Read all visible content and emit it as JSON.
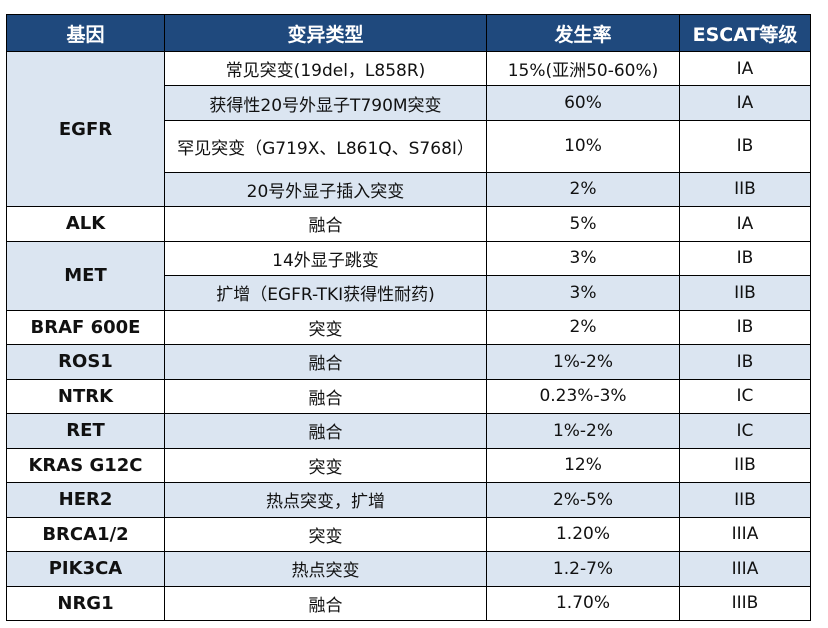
{
  "headers": [
    "基因",
    "变异类型",
    "发生率",
    "ESCAT等级"
  ],
  "rows": [
    {
      "gene": "EGFR",
      "variants": [
        {
          "type": "常见突变(19del，L858R)",
          "rate": "15%(亚洲50-60%)",
          "level": "IA"
        },
        {
          "type": "获得性20号外显子T790M突变",
          "rate": "60%",
          "level": "IA"
        },
        {
          "type": "罕见突变（G719X、L861Q、S768I）",
          "rate": "10%",
          "level": "IB"
        },
        {
          "type": "20号外显子插入突变",
          "rate": "2%",
          "level": "IIB"
        }
      ]
    },
    {
      "gene": "ALK",
      "variants": [
        {
          "type": "融合",
          "rate": "5%",
          "level": "IA"
        }
      ]
    },
    {
      "gene": "MET",
      "variants": [
        {
          "type": "14外显子跳变",
          "rate": "3%",
          "level": "IB"
        },
        {
          "type": "扩增（EGFR-TKI获得性耐药)",
          "rate": "3%",
          "level": "IIB"
        }
      ]
    },
    {
      "gene": "BRAF 600E",
      "variants": [
        {
          "type": "突变",
          "rate": "2%",
          "level": "IB"
        }
      ]
    },
    {
      "gene": "ROS1",
      "variants": [
        {
          "type": "融合",
          "rate": "1%-2%",
          "level": "IB"
        }
      ]
    },
    {
      "gene": "NTRK",
      "variants": [
        {
          "type": "融合",
          "rate": "0.23%-3%",
          "level": "IC"
        }
      ]
    },
    {
      "gene": "RET",
      "variants": [
        {
          "type": "融合",
          "rate": "1%-2%",
          "level": "IC"
        }
      ]
    },
    {
      "gene": "KRAS G12C",
      "variants": [
        {
          "type": "突变",
          "rate": "12%",
          "level": "IIB"
        }
      ]
    },
    {
      "gene": "HER2",
      "variants": [
        {
          "type": "热点突变，扩增",
          "rate": "2%-5%",
          "level": "IIB"
        }
      ]
    },
    {
      "gene": "BRCA1/2",
      "variants": [
        {
          "type": "突变",
          "rate": "1.20%",
          "level": "IIIA"
        }
      ]
    },
    {
      "gene": "PIK3CA",
      "variants": [
        {
          "type": "热点突变",
          "rate": "1.2-7%",
          "level": "IIIA"
        }
      ]
    },
    {
      "gene": "NRG1",
      "variants": [
        {
          "type": "融合",
          "rate": "1.70%",
          "level": "IIIB"
        }
      ]
    }
  ],
  "colors": {
    "header_bg": "#1f497d",
    "header_text": "#ffffff",
    "shade": "#dbe5f1",
    "border": "#000000"
  }
}
